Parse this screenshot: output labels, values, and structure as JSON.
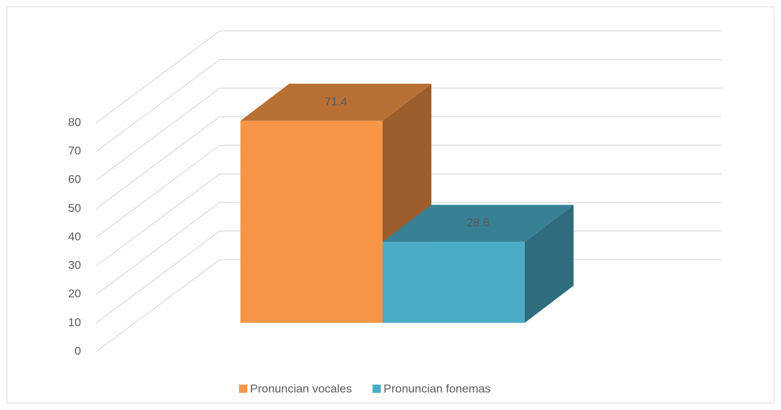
{
  "chart_data": {
    "type": "bar3d",
    "categories": [
      null
    ],
    "series": [
      {
        "name": "Pronuncian vocales",
        "color": "#f79646",
        "values": [
          71.4
        ]
      },
      {
        "name": "Pronuncian fonemas",
        "color": "#4bacc6",
        "values": [
          28.6
        ]
      }
    ],
    "ylim": [
      0,
      80
    ],
    "yticks": [
      0,
      10,
      20,
      30,
      40,
      50,
      60,
      70,
      80
    ],
    "grid": true,
    "legend": "bottom"
  }
}
